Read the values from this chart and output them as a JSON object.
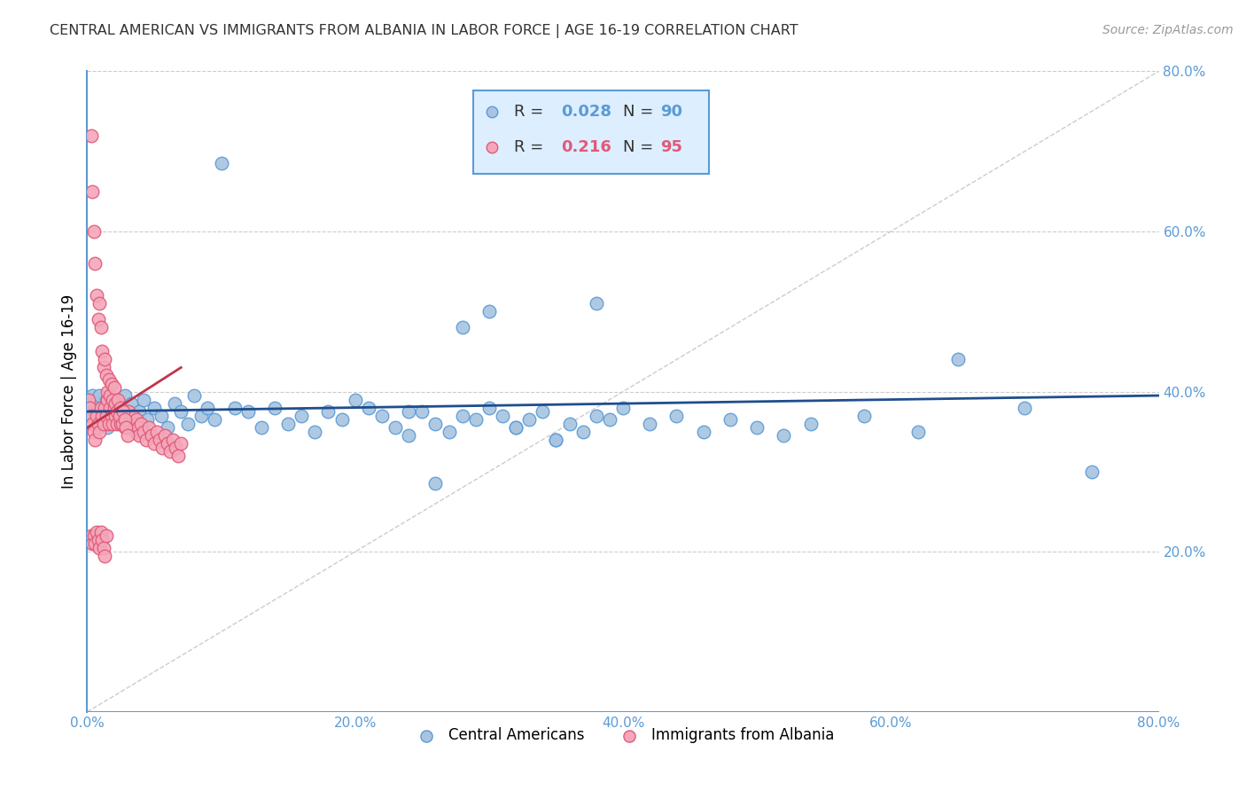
{
  "title": "CENTRAL AMERICAN VS IMMIGRANTS FROM ALBANIA IN LABOR FORCE | AGE 16-19 CORRELATION CHART",
  "source": "Source: ZipAtlas.com",
  "ylabel": "In Labor Force | Age 16-19",
  "xlim": [
    0.0,
    0.8
  ],
  "ylim": [
    0.0,
    0.8
  ],
  "xticks": [
    0.0,
    0.2,
    0.4,
    0.6,
    0.8
  ],
  "yticks": [
    0.2,
    0.4,
    0.6,
    0.8
  ],
  "xticklabels": [
    "0.0%",
    "20.0%",
    "40.0%",
    "60.0%",
    "80.0%"
  ],
  "yticklabels": [
    "20.0%",
    "40.0%",
    "60.0%",
    "80.0%"
  ],
  "title_color": "#333333",
  "axis_color": "#5b9bd5",
  "tick_color": "#5b9bd5",
  "grid_color": "#cccccc",
  "blue_color": "#a8c4e0",
  "pink_color": "#f4a7b9",
  "blue_edge": "#5b9bd5",
  "pink_edge": "#e05a7a",
  "trendline_blue": "#1f4e8c",
  "trendline_pink": "#c0354a",
  "diagonal_color": "#cccccc",
  "legend_box_color": "#ddeeff",
  "legend_border_color": "#5b9bd5",
  "R_blue": 0.028,
  "N_blue": 90,
  "R_pink": 0.216,
  "N_pink": 95,
  "blue_scatter_x": [
    0.001,
    0.002,
    0.003,
    0.004,
    0.005,
    0.006,
    0.007,
    0.008,
    0.009,
    0.01,
    0.011,
    0.012,
    0.013,
    0.014,
    0.015,
    0.016,
    0.017,
    0.018,
    0.019,
    0.02,
    0.022,
    0.024,
    0.026,
    0.028,
    0.03,
    0.033,
    0.036,
    0.039,
    0.042,
    0.045,
    0.05,
    0.055,
    0.06,
    0.065,
    0.07,
    0.075,
    0.08,
    0.085,
    0.09,
    0.095,
    0.1,
    0.11,
    0.12,
    0.13,
    0.14,
    0.15,
    0.16,
    0.17,
    0.18,
    0.19,
    0.2,
    0.21,
    0.22,
    0.23,
    0.24,
    0.25,
    0.26,
    0.27,
    0.28,
    0.29,
    0.3,
    0.31,
    0.32,
    0.33,
    0.34,
    0.35,
    0.36,
    0.37,
    0.38,
    0.39,
    0.4,
    0.42,
    0.44,
    0.46,
    0.48,
    0.5,
    0.52,
    0.54,
    0.58,
    0.62,
    0.65,
    0.7,
    0.75,
    0.38,
    0.28,
    0.3,
    0.35,
    0.32,
    0.26,
    0.24
  ],
  "blue_scatter_y": [
    0.385,
    0.39,
    0.37,
    0.395,
    0.38,
    0.375,
    0.385,
    0.37,
    0.395,
    0.365,
    0.38,
    0.36,
    0.375,
    0.39,
    0.355,
    0.385,
    0.37,
    0.38,
    0.365,
    0.39,
    0.375,
    0.385,
    0.36,
    0.395,
    0.37,
    0.385,
    0.35,
    0.375,
    0.39,
    0.365,
    0.38,
    0.37,
    0.355,
    0.385,
    0.375,
    0.36,
    0.395,
    0.37,
    0.38,
    0.365,
    0.685,
    0.38,
    0.375,
    0.355,
    0.38,
    0.36,
    0.37,
    0.35,
    0.375,
    0.365,
    0.39,
    0.38,
    0.37,
    0.355,
    0.345,
    0.375,
    0.36,
    0.35,
    0.37,
    0.365,
    0.38,
    0.37,
    0.355,
    0.365,
    0.375,
    0.34,
    0.36,
    0.35,
    0.37,
    0.365,
    0.38,
    0.36,
    0.37,
    0.35,
    0.365,
    0.355,
    0.345,
    0.36,
    0.37,
    0.35,
    0.44,
    0.38,
    0.3,
    0.51,
    0.48,
    0.5,
    0.34,
    0.355,
    0.285,
    0.375
  ],
  "pink_scatter_x": [
    0.001,
    0.002,
    0.003,
    0.004,
    0.005,
    0.006,
    0.007,
    0.008,
    0.009,
    0.01,
    0.011,
    0.012,
    0.013,
    0.014,
    0.015,
    0.016,
    0.017,
    0.018,
    0.019,
    0.02,
    0.021,
    0.022,
    0.023,
    0.024,
    0.025,
    0.026,
    0.027,
    0.028,
    0.029,
    0.03,
    0.031,
    0.032,
    0.033,
    0.034,
    0.035,
    0.036,
    0.037,
    0.038,
    0.039,
    0.04,
    0.042,
    0.044,
    0.046,
    0.048,
    0.05,
    0.052,
    0.054,
    0.056,
    0.058,
    0.06,
    0.062,
    0.064,
    0.066,
    0.068,
    0.07,
    0.003,
    0.004,
    0.005,
    0.006,
    0.007,
    0.008,
    0.009,
    0.01,
    0.011,
    0.012,
    0.013,
    0.014,
    0.015,
    0.016,
    0.017,
    0.018,
    0.019,
    0.02,
    0.021,
    0.022,
    0.023,
    0.024,
    0.025,
    0.026,
    0.027,
    0.028,
    0.029,
    0.03,
    0.003,
    0.004,
    0.005,
    0.006,
    0.007,
    0.008,
    0.009,
    0.01,
    0.011,
    0.012,
    0.013,
    0.014
  ],
  "pink_scatter_y": [
    0.39,
    0.38,
    0.37,
    0.36,
    0.35,
    0.34,
    0.37,
    0.36,
    0.35,
    0.38,
    0.37,
    0.36,
    0.38,
    0.37,
    0.39,
    0.36,
    0.38,
    0.37,
    0.36,
    0.38,
    0.37,
    0.36,
    0.38,
    0.37,
    0.36,
    0.375,
    0.365,
    0.355,
    0.37,
    0.36,
    0.375,
    0.365,
    0.355,
    0.37,
    0.36,
    0.35,
    0.365,
    0.355,
    0.345,
    0.36,
    0.35,
    0.34,
    0.355,
    0.345,
    0.335,
    0.35,
    0.34,
    0.33,
    0.345,
    0.335,
    0.325,
    0.34,
    0.33,
    0.32,
    0.335,
    0.72,
    0.65,
    0.6,
    0.56,
    0.52,
    0.49,
    0.51,
    0.48,
    0.45,
    0.43,
    0.44,
    0.42,
    0.4,
    0.415,
    0.395,
    0.41,
    0.39,
    0.405,
    0.385,
    0.375,
    0.39,
    0.37,
    0.38,
    0.36,
    0.375,
    0.365,
    0.355,
    0.345,
    0.22,
    0.21,
    0.22,
    0.21,
    0.225,
    0.215,
    0.205,
    0.225,
    0.215,
    0.205,
    0.195,
    0.22
  ]
}
